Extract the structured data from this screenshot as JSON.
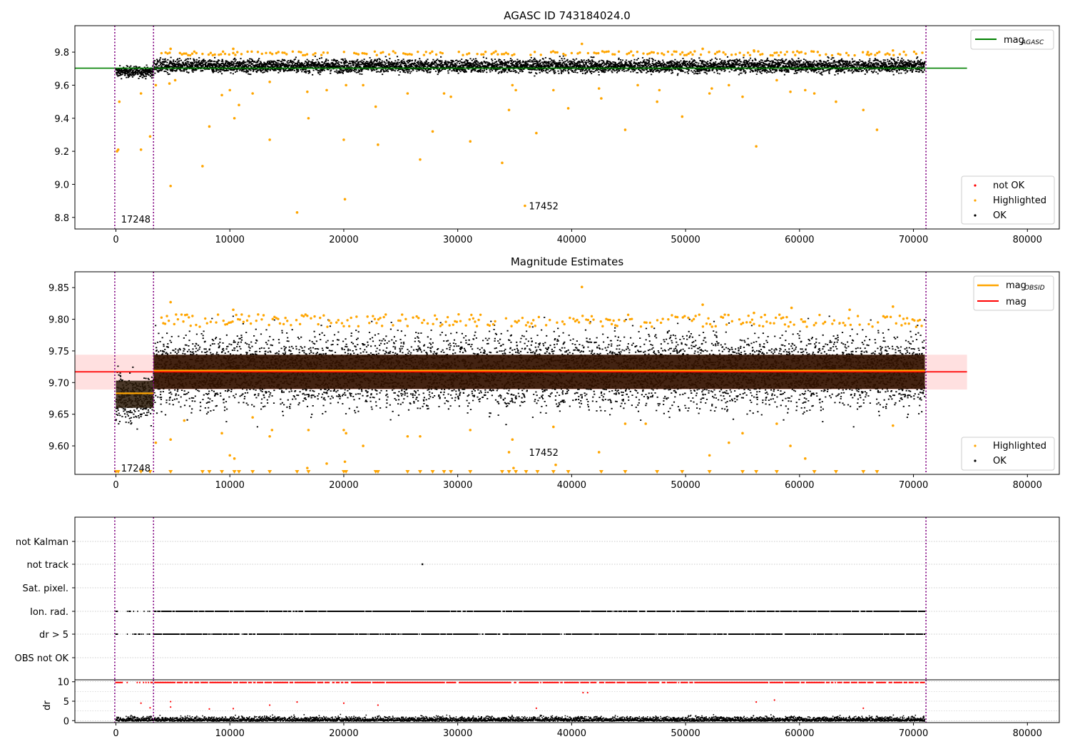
{
  "chart_data": [
    {
      "type": "scatter",
      "title": "AGASC ID 743184024.0",
      "xlim": [
        -3600,
        82800
      ],
      "ylim": [
        8.73,
        9.96
      ],
      "xticks": [
        0,
        10000,
        20000,
        30000,
        40000,
        50000,
        60000,
        70000,
        80000
      ],
      "xtick_labels": [
        "0",
        "10000",
        "20000",
        "30000",
        "40000",
        "50000",
        "60000",
        "70000",
        "80000"
      ],
      "yticks": [
        8.8,
        9.0,
        9.2,
        9.4,
        9.6,
        9.8
      ],
      "ytick_labels": [
        "8.8",
        "9.0",
        "9.2",
        "9.4",
        "9.6",
        "9.8"
      ],
      "vlines": [
        {
          "x": -100,
          "color": "#800080",
          "style": "dotted"
        },
        {
          "x": 3300,
          "color": "#800080",
          "style": "dotted"
        },
        {
          "x": 71100,
          "color": "#800080",
          "style": "dotted"
        }
      ],
      "reference_line": {
        "name": "mag",
        "subscript": "AGASC",
        "y": 9.703,
        "x_range": [
          -3600,
          74700
        ],
        "color": "#008000"
      },
      "band": {
        "segments": [
          {
            "x0": 0,
            "x1": 3300,
            "center": 9.685,
            "halfwidth": 0.03
          },
          {
            "x0": 3300,
            "x1": 71000,
            "center": 9.72,
            "halfwidth": 0.03
          }
        ]
      },
      "annotations": [
        {
          "text": "17248",
          "x": 200,
          "y": 8.79
        },
        {
          "text": "17452",
          "x": 36000,
          "y": 8.87
        }
      ],
      "highlighted_outliers": [
        [
          200,
          9.21
        ],
        [
          300,
          9.5
        ],
        [
          100,
          9.2
        ],
        [
          2200,
          9.21
        ],
        [
          2200,
          9.55
        ],
        [
          3000,
          9.29
        ],
        [
          3500,
          9.6
        ],
        [
          4800,
          8.99
        ],
        [
          4700,
          9.61
        ],
        [
          5200,
          9.63
        ],
        [
          7600,
          9.11
        ],
        [
          8200,
          9.35
        ],
        [
          9300,
          9.54
        ],
        [
          10000,
          9.57
        ],
        [
          10400,
          9.4
        ],
        [
          10800,
          9.48
        ],
        [
          12000,
          9.55
        ],
        [
          13500,
          9.27
        ],
        [
          13500,
          9.62
        ],
        [
          15900,
          8.83
        ],
        [
          16900,
          9.4
        ],
        [
          16800,
          9.56
        ],
        [
          18500,
          9.57
        ],
        [
          20000,
          9.27
        ],
        [
          20100,
          8.91
        ],
        [
          20200,
          9.6
        ],
        [
          21700,
          9.6
        ],
        [
          22800,
          9.47
        ],
        [
          23000,
          9.24
        ],
        [
          25600,
          9.55
        ],
        [
          26700,
          9.15
        ],
        [
          27800,
          9.32
        ],
        [
          28800,
          9.55
        ],
        [
          29400,
          9.53
        ],
        [
          31100,
          9.26
        ],
        [
          33900,
          9.13
        ],
        [
          34500,
          9.45
        ],
        [
          34800,
          9.6
        ],
        [
          35100,
          9.57
        ],
        [
          36900,
          9.31
        ],
        [
          38400,
          9.57
        ],
        [
          39700,
          9.46
        ],
        [
          42600,
          9.52
        ],
        [
          42400,
          9.58
        ],
        [
          44700,
          9.33
        ],
        [
          45800,
          9.6
        ],
        [
          47500,
          9.5
        ],
        [
          47700,
          9.57
        ],
        [
          49700,
          9.41
        ],
        [
          52100,
          9.55
        ],
        [
          52300,
          9.58
        ],
        [
          53800,
          9.6
        ],
        [
          55000,
          9.53
        ],
        [
          56200,
          9.23
        ],
        [
          58000,
          9.63
        ],
        [
          59200,
          9.56
        ],
        [
          60500,
          9.57
        ],
        [
          61300,
          9.55
        ],
        [
          63200,
          9.5
        ],
        [
          65600,
          9.45
        ],
        [
          66800,
          9.33
        ],
        [
          35900,
          8.87
        ]
      ],
      "highlighted_top": [
        [
          4800,
          9.82
        ],
        [
          10300,
          9.82
        ],
        [
          40900,
          9.85
        ],
        [
          51500,
          9.82
        ],
        [
          56000,
          9.81
        ],
        [
          68200,
          9.81
        ],
        [
          66000,
          9.8
        ]
      ],
      "legend": [
        {
          "label": "mag",
          "subscript": "AGASC",
          "marker": "line",
          "color": "#008000",
          "position": "upper right"
        },
        {
          "label": "not OK",
          "marker": "dot",
          "color": "#ff0000",
          "position": "lower right"
        },
        {
          "label": "Highlighted",
          "marker": "dot",
          "color": "#ffa500",
          "position": "lower right"
        },
        {
          "label": "OK",
          "marker": "dot",
          "color": "#000000",
          "position": "lower right"
        }
      ]
    },
    {
      "type": "scatter",
      "title": "Magnitude Estimates",
      "xlim": [
        -3600,
        82800
      ],
      "ylim": [
        9.555,
        9.875
      ],
      "xticks": [
        0,
        10000,
        20000,
        30000,
        40000,
        50000,
        60000,
        70000,
        80000
      ],
      "xtick_labels": [
        "0",
        "10000",
        "20000",
        "30000",
        "40000",
        "50000",
        "60000",
        "70000",
        "80000"
      ],
      "yticks": [
        9.6,
        9.65,
        9.7,
        9.75,
        9.8,
        9.85
      ],
      "ytick_labels": [
        "9.60",
        "9.65",
        "9.70",
        "9.75",
        "9.80",
        "9.85"
      ],
      "vlines": [
        {
          "x": -100,
          "color": "#800080",
          "style": "dotted"
        },
        {
          "x": 3300,
          "color": "#800080",
          "style": "dotted"
        },
        {
          "x": 71100,
          "color": "#800080",
          "style": "dotted"
        }
      ],
      "mag_line": {
        "name": "mag",
        "y": 9.717,
        "x_range": [
          -3600,
          74700
        ],
        "color": "#ff0000",
        "band": [
          9.689,
          9.744
        ]
      },
      "obsid_segments": [
        {
          "name": "mag",
          "subscript": "OBSID",
          "x0": 0,
          "x1": 3300,
          "y": 9.683,
          "color": "#ffa500"
        },
        {
          "name": "mag",
          "subscript": "OBSID",
          "x0": 3300,
          "x1": 71000,
          "y": 9.719,
          "color": "#ffa500"
        }
      ],
      "annotations": [
        {
          "text": "17248",
          "x": 200,
          "y": 9.565
        },
        {
          "text": "17452",
          "x": 36000,
          "y": 9.59
        }
      ],
      "highlighted_outliers": [
        [
          3500,
          9.605
        ],
        [
          4800,
          9.61
        ],
        [
          6000,
          9.64
        ],
        [
          9300,
          9.62
        ],
        [
          10000,
          9.585
        ],
        [
          10400,
          9.58
        ],
        [
          12000,
          9.645
        ],
        [
          13500,
          9.615
        ],
        [
          13700,
          9.625
        ],
        [
          16900,
          9.625
        ],
        [
          20000,
          9.625
        ],
        [
          20200,
          9.62
        ],
        [
          21700,
          9.6
        ],
        [
          25600,
          9.615
        ],
        [
          26700,
          9.615
        ],
        [
          31100,
          9.625
        ],
        [
          34500,
          9.59
        ],
        [
          34800,
          9.61
        ],
        [
          38400,
          9.63
        ],
        [
          42400,
          9.59
        ],
        [
          44700,
          9.635
        ],
        [
          46500,
          9.635
        ],
        [
          52100,
          9.585
        ],
        [
          53800,
          9.605
        ],
        [
          55000,
          9.62
        ],
        [
          58000,
          9.635
        ],
        [
          59200,
          9.6
        ],
        [
          60500,
          9.58
        ],
        [
          68200,
          9.632
        ],
        [
          20100,
          9.575
        ],
        [
          16800,
          9.565
        ],
        [
          38600,
          9.57
        ],
        [
          18500,
          9.572
        ],
        [
          34900,
          9.565
        ]
      ],
      "highlighted_top": [
        [
          4800,
          9.827
        ],
        [
          10300,
          9.815
        ],
        [
          40900,
          9.851
        ],
        [
          51500,
          9.823
        ],
        [
          56000,
          9.81
        ],
        [
          68200,
          9.82
        ],
        [
          59300,
          9.818
        ],
        [
          64400,
          9.815
        ]
      ],
      "clipped_markers_x": [
        0,
        200,
        2200,
        3000,
        4800,
        7600,
        8200,
        9300,
        10400,
        10800,
        12000,
        13500,
        15900,
        16900,
        20000,
        20200,
        22800,
        23000,
        25600,
        26700,
        27800,
        28800,
        29400,
        31100,
        33900,
        34500,
        35100,
        36000,
        37000,
        38400,
        39700,
        42600,
        44700,
        47500,
        49700,
        52100,
        55000,
        56200,
        58000,
        61300,
        63200,
        65600,
        66800
      ],
      "legend": [
        {
          "label": "mag",
          "subscript": "OBSID",
          "marker": "line",
          "color": "#ffa500",
          "position": "upper right"
        },
        {
          "label": "mag",
          "marker": "line",
          "color": "#ff0000",
          "position": "upper right"
        },
        {
          "label": "Highlighted",
          "marker": "dot",
          "color": "#ffa500",
          "position": "lower right"
        },
        {
          "label": "OK",
          "marker": "dot",
          "color": "#000000",
          "position": "lower right"
        }
      ]
    },
    {
      "type": "scatter",
      "title": "",
      "xlim": [
        -3600,
        82800
      ],
      "categories": [
        "not Kalman",
        "not track",
        "Sat. pixel.",
        "Ion. rad.",
        "dr > 5",
        "OBS not OK"
      ],
      "flag_rows": [
        {
          "category": "not Kalman",
          "points": []
        },
        {
          "category": "not track",
          "points": [
            26900
          ]
        },
        {
          "category": "Sat. pixel.",
          "points": []
        },
        {
          "category": "Ion. rad.",
          "ranges": [
            [
              0,
              200
            ],
            [
              1000,
              71000
            ]
          ]
        },
        {
          "category": "dr > 5",
          "ranges": [
            [
              0,
              200
            ],
            [
              1000,
              71000
            ]
          ]
        },
        {
          "category": "OBS not OK",
          "points": []
        }
      ],
      "vlines": [
        {
          "x": -100,
          "color": "#800080",
          "style": "dotted"
        },
        {
          "x": 3300,
          "color": "#800080",
          "style": "dotted"
        },
        {
          "x": 71100,
          "color": "#800080",
          "style": "dotted"
        }
      ]
    },
    {
      "type": "scatter",
      "title": "",
      "ylabel": "dr",
      "xlim": [
        -3600,
        82800
      ],
      "ylim": [
        -0.5,
        10.5
      ],
      "xticks": [
        0,
        10000,
        20000,
        30000,
        40000,
        50000,
        60000,
        70000,
        80000
      ],
      "xtick_labels": [
        "0",
        "10000",
        "20000",
        "30000",
        "40000",
        "50000",
        "60000",
        "70000",
        "80000"
      ],
      "yticks": [
        0,
        5,
        10
      ],
      "ytick_labels": [
        "0",
        "5",
        "10"
      ],
      "dr_clip_value": 9.8,
      "dr_outliers": [
        [
          2200,
          4.5
        ],
        [
          4800,
          4.9
        ],
        [
          8200,
          3.0
        ],
        [
          13500,
          4.0
        ],
        [
          15900,
          4.8
        ],
        [
          20000,
          4.5
        ],
        [
          23000,
          4.0
        ],
        [
          36900,
          3.2
        ],
        [
          41000,
          7.2
        ],
        [
          41400,
          7.2
        ],
        [
          56200,
          4.8
        ],
        [
          57800,
          5.3
        ],
        [
          65600,
          3.2
        ],
        [
          4800,
          3.5
        ],
        [
          10300,
          3.1
        ],
        [
          3000,
          3.3
        ]
      ],
      "vlines": [
        {
          "x": -100,
          "color": "#800080",
          "style": "dotted"
        },
        {
          "x": 3300,
          "color": "#800080",
          "style": "dotted"
        },
        {
          "x": 71100,
          "color": "#800080",
          "style": "dotted"
        }
      ]
    }
  ]
}
